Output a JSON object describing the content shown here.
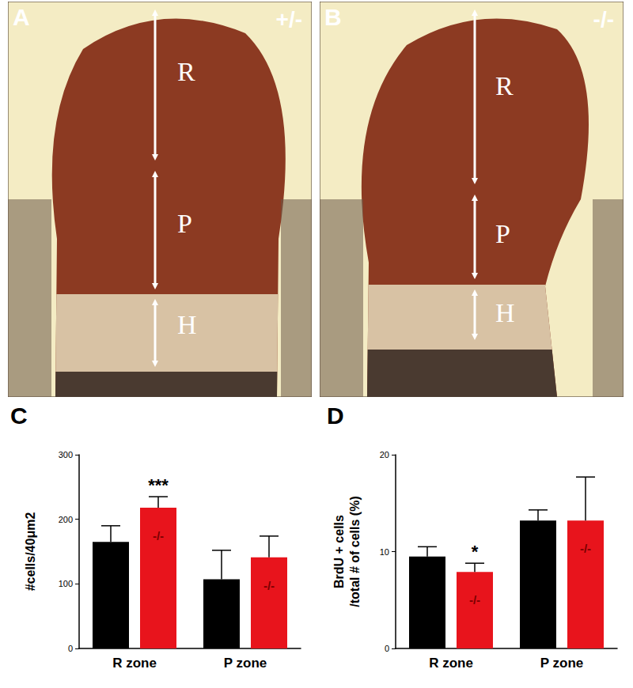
{
  "figure": {
    "panels": [
      {
        "label": "A",
        "genotype": "+/-",
        "zones": [
          "R",
          "P",
          "H"
        ]
      },
      {
        "label": "B",
        "genotype": "-/-",
        "zones": [
          "R",
          "P",
          "H"
        ]
      }
    ]
  },
  "chart_data": [
    {
      "panel": "C",
      "type": "bar",
      "y_label": "#cells/40μm2",
      "categories": [
        "R zone",
        "P zone"
      ],
      "ylim": [
        0,
        300
      ],
      "yticks": [
        0,
        100,
        200,
        300
      ],
      "grid": false,
      "series": [
        {
          "color": "#000000",
          "values": [
            165,
            107
          ],
          "errors": [
            25,
            45
          ]
        },
        {
          "name": "-/-",
          "color": "#e8141c",
          "values": [
            218,
            141
          ],
          "errors": [
            17,
            33
          ]
        }
      ],
      "annotations": [
        {
          "text": "***",
          "category": "R zone",
          "series": "-/-"
        }
      ]
    },
    {
      "panel": "D",
      "type": "bar",
      "y_label": "BrdU + cells\n/total # of cells (%)",
      "categories": [
        "R zone",
        "P zone"
      ],
      "ylim": [
        0,
        20
      ],
      "yticks": [
        0,
        10,
        20
      ],
      "grid": false,
      "series": [
        {
          "color": "#000000",
          "values": [
            9.5,
            13.2
          ],
          "errors": [
            1.0,
            1.1
          ]
        },
        {
          "name": "-/-",
          "color": "#e8141c",
          "values": [
            7.9,
            13.2
          ],
          "errors": [
            0.9,
            4.5
          ]
        }
      ],
      "annotations": [
        {
          "text": "*",
          "category": "R zone",
          "series": "-/-"
        }
      ]
    }
  ]
}
